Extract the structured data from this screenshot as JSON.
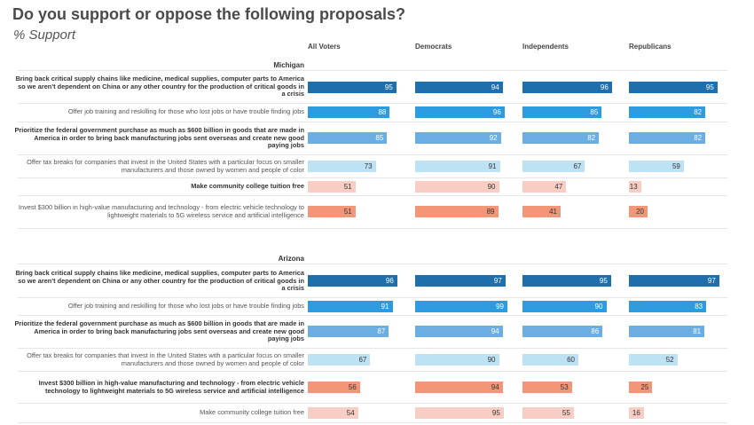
{
  "title": "Do you support or oppose the following proposals?",
  "subtitle": "% Support",
  "columns": [
    "All Voters",
    "Democrats",
    "Independents",
    "Republicans"
  ],
  "chart_data": {
    "type": "bar",
    "title": "Do you support or oppose the following proposals?",
    "subtitle": "% Support",
    "columns": [
      "All Voters",
      "Democrats",
      "Independents",
      "Republicans"
    ],
    "sections": [
      {
        "name": "Michigan",
        "rows": [
          {
            "label": "Bring back critical supply chains like medicine, medical supplies, computer parts to America so we aren't dependent on China or any other country for the production of critical goods in a crisis",
            "bold": true,
            "color": "#1f6fad",
            "text_color": "#ffffff",
            "values": [
              95,
              94,
              96,
              95
            ]
          },
          {
            "label": "Offer job training and reskilling for those who lost jobs or have trouble finding jobs",
            "bold": false,
            "color": "#2d9be0",
            "text_color": "#ffffff",
            "values": [
              88,
              96,
              85,
              82
            ]
          },
          {
            "label": "Prioritize the federal government purchase as much as $600 billion in goods that are made in America in order to bring back manufacturing jobs sent overseas and create new good paying jobs",
            "bold": true,
            "color": "#6aaee4",
            "text_color": "#ffffff",
            "values": [
              85,
              92,
              82,
              82
            ]
          },
          {
            "label": "Offer tax breaks for companies that invest in the United States with a particular focus on smaller manufacturers and those owned by women and people of color",
            "bold": false,
            "color": "#bde2f4",
            "text_color": "#333333",
            "values": [
              73,
              91,
              67,
              59
            ]
          },
          {
            "label": "Make community college tuition free",
            "bold": true,
            "color": "#f8cdc4",
            "text_color": "#333333",
            "values": [
              51,
              90,
              47,
              13
            ]
          },
          {
            "label": "Invest $300 billion in high-value manufacturing and technology - from electric vehicle technology to lightweight materials to 5G wireless service and artificial intelligence",
            "bold": false,
            "color": "#f29677",
            "text_color": "#333333",
            "values": [
              51,
              89,
              41,
              20
            ]
          }
        ]
      },
      {
        "name": "Arizona",
        "rows": [
          {
            "label": "Bring back critical supply chains like medicine, medical supplies, computer parts to America so we aren't dependent on China or any other country for the production of critical goods in a crisis",
            "bold": true,
            "color": "#1f6fad",
            "text_color": "#ffffff",
            "values": [
              96,
              97,
              95,
              97
            ]
          },
          {
            "label": "Offer job training and reskilling for those who lost jobs or have trouble finding jobs",
            "bold": false,
            "color": "#2d9be0",
            "text_color": "#ffffff",
            "values": [
              91,
              99,
              90,
              83
            ]
          },
          {
            "label": "Prioritize the federal government purchase as much as $600 billion in goods that are made in America in order to bring back manufacturing jobs sent overseas and create new good paying jobs",
            "bold": true,
            "color": "#6aaee4",
            "text_color": "#ffffff",
            "values": [
              87,
              94,
              86,
              81
            ]
          },
          {
            "label": "Offer tax breaks for companies that invest in the United States with a particular focus on smaller manufacturers and those owned by women and people of color",
            "bold": false,
            "color": "#bde2f4",
            "text_color": "#333333",
            "values": [
              67,
              90,
              60,
              52
            ]
          },
          {
            "label": "Invest $300 billion in high-value manufacturing and technology - from electric vehicle technology to lightweight materials to 5G wireless service and artificial intelligence",
            "bold": true,
            "color": "#f29677",
            "text_color": "#333333",
            "values": [
              56,
              94,
              53,
              25
            ]
          },
          {
            "label": "Make community college tuition free",
            "bold": false,
            "color": "#f8cdc4",
            "text_color": "#333333",
            "values": [
              54,
              95,
              55,
              16
            ]
          }
        ]
      }
    ],
    "xlim": [
      0,
      100
    ]
  }
}
